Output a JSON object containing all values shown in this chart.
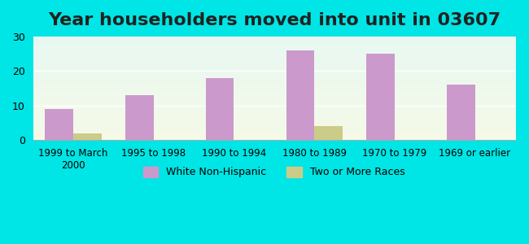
{
  "title": "Year householders moved into unit in 03607",
  "categories": [
    "1999 to March\n2000",
    "1995 to 1998",
    "1990 to 1994",
    "1980 to 1989",
    "1970 to 1979",
    "1969 or earlier"
  ],
  "white_non_hispanic": [
    9,
    13,
    18,
    26,
    25,
    16
  ],
  "two_or_more_races": [
    2,
    0,
    0,
    4,
    0,
    0
  ],
  "bar_color_white": "#cc99cc",
  "bar_color_two": "#cccc88",
  "ylim": [
    0,
    30
  ],
  "yticks": [
    0,
    10,
    20,
    30
  ],
  "background_outer": "#00e5e5",
  "gradient_top": "#e8f8f2",
  "gradient_bottom": "#f5fae8",
  "bar_width": 0.35,
  "title_fontsize": 16,
  "legend_label_white": "White Non-Hispanic",
  "legend_label_two": "Two or More Races"
}
